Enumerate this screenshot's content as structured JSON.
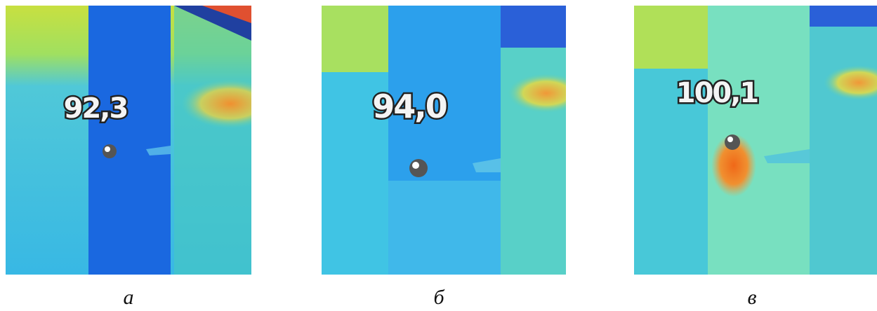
{
  "panels": [
    {
      "reading": "92,3",
      "caption": "а"
    },
    {
      "reading": "94,0",
      "caption": "б"
    },
    {
      "reading": "100,1",
      "caption": "в"
    }
  ]
}
